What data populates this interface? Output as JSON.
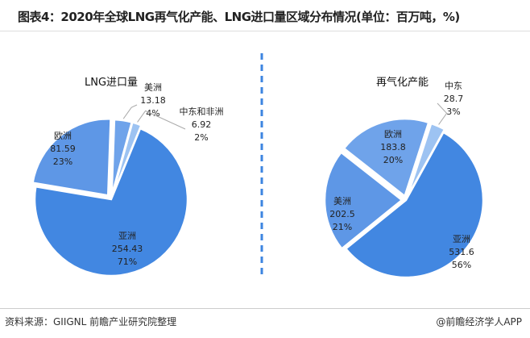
{
  "title": "图表4：2020年全球LNG再气化产能、LNG进口量区域分布情况(单位：百万吨，%)",
  "source": "资料来源：GIIGNL 前瞻产业研究院整理",
  "brand": "@前瞻经济学人APP",
  "chart_data": [
    {
      "type": "pie",
      "title": "LNG进口量",
      "slices": [
        {
          "name": "美洲",
          "value": 13.18,
          "percent": "4%",
          "color": "#6FA3EA"
        },
        {
          "name": "中东和非洲",
          "value": 6.92,
          "percent": "2%",
          "color": "#9DC3F2"
        },
        {
          "name": "亚洲",
          "value": 254.43,
          "percent": "71%",
          "color": "#4287E1"
        },
        {
          "name": "欧洲",
          "value": 81.59,
          "percent": "23%",
          "color": "#5E97E6"
        }
      ]
    },
    {
      "type": "pie",
      "title": "再气化产能",
      "slices": [
        {
          "name": "中东",
          "value": 28.7,
          "percent": "3%",
          "color": "#9DC3F2"
        },
        {
          "name": "亚洲",
          "value": 531.6,
          "percent": "56%",
          "color": "#4287E1"
        },
        {
          "name": "美洲",
          "value": 202.5,
          "percent": "21%",
          "color": "#5E97E6"
        },
        {
          "name": "欧洲",
          "value": 183.8,
          "percent": "20%",
          "color": "#6FA3EA"
        }
      ]
    }
  ]
}
